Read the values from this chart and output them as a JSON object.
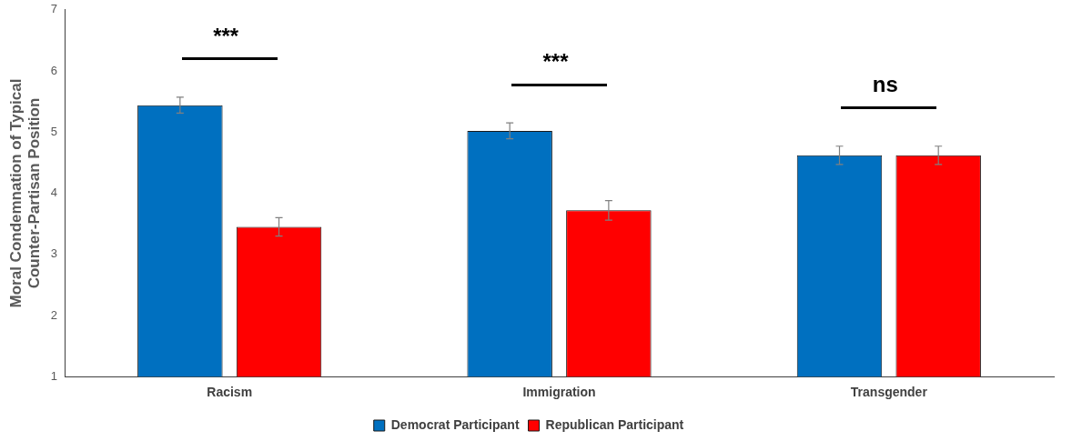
{
  "chart_data": {
    "type": "bar",
    "ylabel": "Moral Condemnation of Typical Counter-Partisan Position",
    "categories": [
      "Racism",
      "Immigration",
      "Transgender"
    ],
    "series": [
      {
        "name": "Democrat Participant",
        "color": "#0070c0",
        "values": [
          5.44,
          5.02,
          4.62
        ],
        "errors": [
          0.13,
          0.13,
          0.15
        ]
      },
      {
        "name": "Republican Participant",
        "color": "#ff0000",
        "values": [
          3.45,
          3.72,
          4.62
        ],
        "errors": [
          0.15,
          0.16,
          0.15
        ]
      }
    ],
    "ylim": [
      1,
      7
    ],
    "yticks": [
      1,
      2,
      3,
      4,
      5,
      6,
      7
    ],
    "grid": false,
    "legend": "bottom",
    "annotations": [
      "***",
      "***",
      "ns"
    ]
  }
}
